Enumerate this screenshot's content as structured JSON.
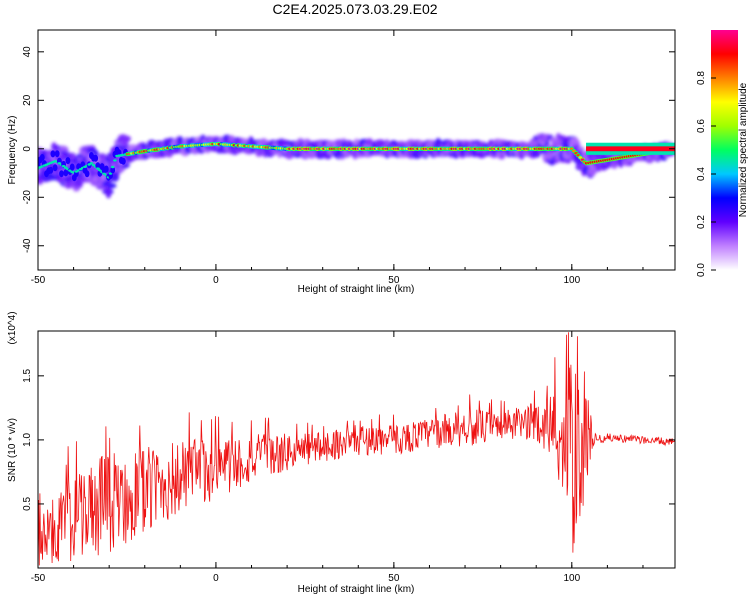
{
  "title": "C2E4.2025.073.03.29.E02",
  "chart_data": [
    {
      "type": "heatmap",
      "xlabel": "Height of straight line (km)",
      "ylabel": "Frequency (Hz)",
      "xlim": [
        -50,
        129
      ],
      "ylim": [
        -50,
        49
      ],
      "xticks": [
        "-50",
        "0",
        "50",
        "100"
      ],
      "yticks": [
        "40",
        "20",
        "0",
        "-20",
        "-40"
      ],
      "colorbar": {
        "label": "Normalized spectral amplitude",
        "range": [
          0,
          1
        ],
        "ticks": [
          "0.0",
          "0.2",
          "0.4",
          "0.6",
          "0.8"
        ],
        "colors": [
          "#ffffff",
          "#c080ff",
          "#6000ff",
          "#0000ff",
          "#00c8ff",
          "#00ff60",
          "#a0ff00",
          "#ffff00",
          "#ff8000",
          "#ff0000",
          "#ff0090"
        ]
      },
      "ridge": {
        "description_points_x": [
          -50,
          -45,
          -40,
          -35,
          -30,
          -28,
          -20,
          -10,
          0,
          10,
          20,
          50,
          90,
          100,
          104,
          129
        ],
        "description_points_y": [
          -8,
          -5,
          -10,
          -6,
          -12,
          -3,
          -1,
          1,
          2,
          1,
          0,
          0,
          0,
          0,
          -6,
          0
        ]
      }
    },
    {
      "type": "line",
      "xlabel": "Height of straight line (km)",
      "ylabel": "SNR (10 * v/v)",
      "multiplier": "(x10^4)",
      "xlim": [
        -50,
        129
      ],
      "ylim": [
        0,
        1.85
      ],
      "xticks": [
        "-50",
        "0",
        "50",
        "100"
      ],
      "yticks": [
        "1.5",
        "1.0",
        "0.5"
      ],
      "color": "#ff0000",
      "envelope_x": [
        -50,
        -40,
        -30,
        -20,
        -10,
        0,
        10,
        20,
        30,
        40,
        50,
        60,
        70,
        80,
        90,
        95,
        98,
        100,
        102,
        104,
        106,
        110,
        120,
        129
      ],
      "envelope_center": [
        0.2,
        0.4,
        0.5,
        0.6,
        0.7,
        0.78,
        0.85,
        0.9,
        0.95,
        1.0,
        1.0,
        1.05,
        1.1,
        1.1,
        1.15,
        1.1,
        1.0,
        0.8,
        0.9,
        1.1,
        1.0,
        1.02,
        1.0,
        0.98
      ],
      "envelope_spread": [
        0.2,
        0.35,
        0.4,
        0.35,
        0.3,
        0.25,
        0.2,
        0.15,
        0.12,
        0.12,
        0.12,
        0.12,
        0.15,
        0.12,
        0.15,
        0.3,
        0.6,
        0.8,
        0.6,
        0.5,
        0.05,
        0.03,
        0.03,
        0.03
      ]
    }
  ]
}
